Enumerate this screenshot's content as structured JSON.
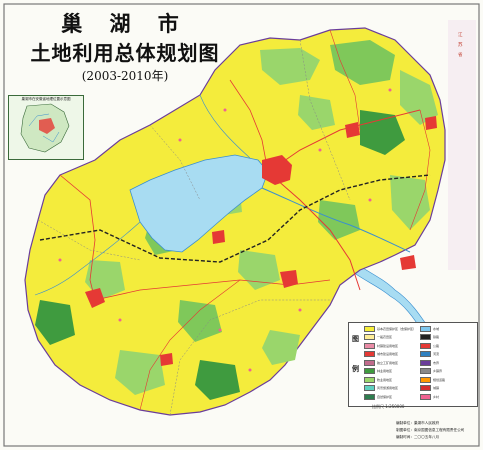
{
  "title": {
    "line1": "巢 湖 市",
    "line2": "土地利用总体规划图",
    "line3": "(2003-2010年)"
  },
  "inset": {
    "title": "巢湖市在安徽省地理位置示意图"
  },
  "legend": {
    "head_top": "图",
    "head_bottom": "例",
    "items": [
      {
        "label": "基本农田保护区（含保护区）",
        "color": "#f7ef3a"
      },
      {
        "label": "一般农田区",
        "color": "#ffee99"
      },
      {
        "label": "村镇建设用地区",
        "color": "#e98ba6"
      },
      {
        "label": "城市建设用地区",
        "color": "#e53935"
      },
      {
        "label": "独立工矿用地区",
        "color": "#c06a8c"
      },
      {
        "label": "林业用地区",
        "color": "#3f9b3f"
      },
      {
        "label": "牧业用地区",
        "color": "#9ad66b"
      },
      {
        "label": "风景旅游用地区",
        "color": "#5fd0c0"
      },
      {
        "label": "自然保护区",
        "color": "#2e7d4f"
      },
      {
        "label": "水域",
        "color": "#7ec8f0"
      },
      {
        "label": "铁路",
        "color": "#222222"
      },
      {
        "label": "公路",
        "color": "#e53935"
      },
      {
        "label": "河流",
        "color": "#2f80c0"
      },
      {
        "label": "市界",
        "color": "#6a3d9a"
      },
      {
        "label": "乡镇界",
        "color": "#888888"
      },
      {
        "label": "规划道路",
        "color": "#ff9800"
      },
      {
        "label": "城镇",
        "color": "#d32f2f"
      },
      {
        "label": "乡村",
        "color": "#f06292"
      }
    ]
  },
  "scale": "比例尺 1:250000",
  "credits": {
    "line1": "编制单位：巢湖市人民政府",
    "line2": "制图单位：南京国图信息工程有限责任公司",
    "line3": "编制时间：二〇〇五年八月"
  },
  "edge_labels": [
    "江",
    "苏",
    "省"
  ],
  "colors": {
    "farmland_yellow": "#f7ef3a",
    "general_farm": "#e8f07a",
    "forest_green": "#3f9b3f",
    "grass_green": "#9ad66b",
    "lake_blue": "#9fd8f0",
    "river_blue": "#3a8fd0",
    "urban_red": "#e53935",
    "outside_white": "#f8f8f4"
  }
}
